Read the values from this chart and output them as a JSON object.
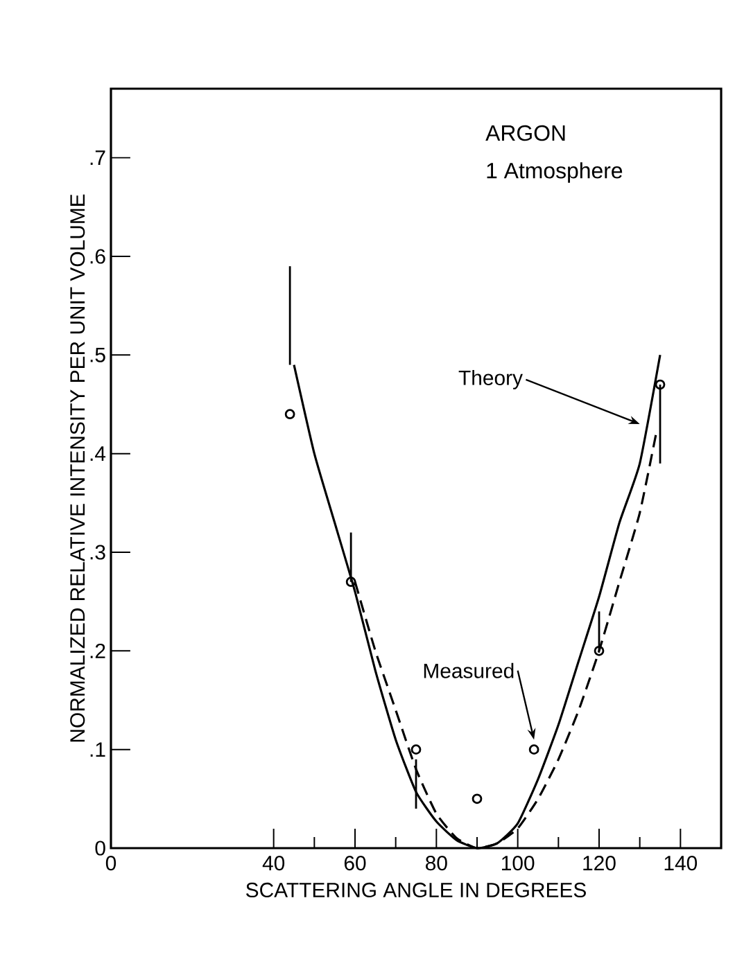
{
  "chart_data": {
    "type": "line",
    "xlabel": "SCATTERING ANGLE IN DEGREES",
    "ylabel": "NORMALIZED RELATIVE INTENSITY PER UNIT VOLUME",
    "xlim": [
      0,
      150
    ],
    "ylim": [
      0,
      0.77
    ],
    "xticks": [
      0,
      40,
      {
        "value": 50,
        "label": null
      },
      60,
      {
        "value": 70,
        "label": null
      },
      80,
      {
        "value": 90,
        "label": null
      },
      100,
      {
        "value": 110,
        "label": null
      },
      120,
      {
        "value": 130,
        "label": null
      },
      140
    ],
    "yticks": [
      0,
      {
        "value": 0.1,
        "label": ".1"
      },
      {
        "value": 0.2,
        "label": ".2"
      },
      {
        "value": 0.3,
        "label": ".3"
      },
      {
        "value": 0.4,
        "label": ".4"
      },
      {
        "value": 0.5,
        "label": ".5"
      },
      {
        "value": 0.6,
        "label": ".6"
      },
      {
        "value": 0.7,
        "label": ".7"
      }
    ],
    "series": [
      {
        "color": "#000000",
        "line_style": "solid",
        "marker": "none",
        "x": [
          45,
          50,
          55,
          60,
          65,
          70,
          75,
          80,
          85,
          90,
          95,
          100,
          105,
          110,
          115,
          120,
          125,
          130,
          135
        ],
        "values": [
          0.49,
          0.4,
          0.33,
          0.26,
          0.18,
          0.11,
          0.057,
          0.027,
          0.008,
          0,
          0.005,
          0.025,
          0.07,
          0.125,
          0.19,
          0.255,
          0.33,
          0.39,
          0.5
        ]
      },
      {
        "color": "#000000",
        "line_style": "dashed",
        "marker": "none",
        "x": [
          60,
          65,
          70,
          75,
          80,
          85,
          90,
          95,
          100,
          105,
          110,
          115,
          120,
          125,
          130,
          134
        ],
        "values": [
          0.27,
          0.2,
          0.14,
          0.08,
          0.035,
          0.01,
          0,
          0.005,
          0.02,
          0.05,
          0.09,
          0.14,
          0.2,
          0.27,
          0.34,
          0.42
        ]
      },
      {
        "type": "scatter",
        "color": "#000000",
        "marker": "circle",
        "x": [
          44,
          59,
          75,
          90,
          104,
          120,
          135
        ],
        "values": [
          0.44,
          0.27,
          0.1,
          0.05,
          0.1,
          0.2,
          0.47
        ],
        "errors": [
          [
            0.49,
            0.59
          ],
          [
            0.27,
            0.32
          ],
          [
            0.04,
            0.09
          ],
          null,
          null,
          [
            0.2,
            0.24
          ],
          [
            0.39,
            0.47
          ]
        ]
      }
    ],
    "annotations": [
      "ARGON",
      "1 Atmosphere",
      {
        "text": "Theory",
        "x": 130,
        "y": 0.43
      },
      {
        "text": "Measured",
        "x": 104,
        "y": 0.11
      }
    ]
  }
}
